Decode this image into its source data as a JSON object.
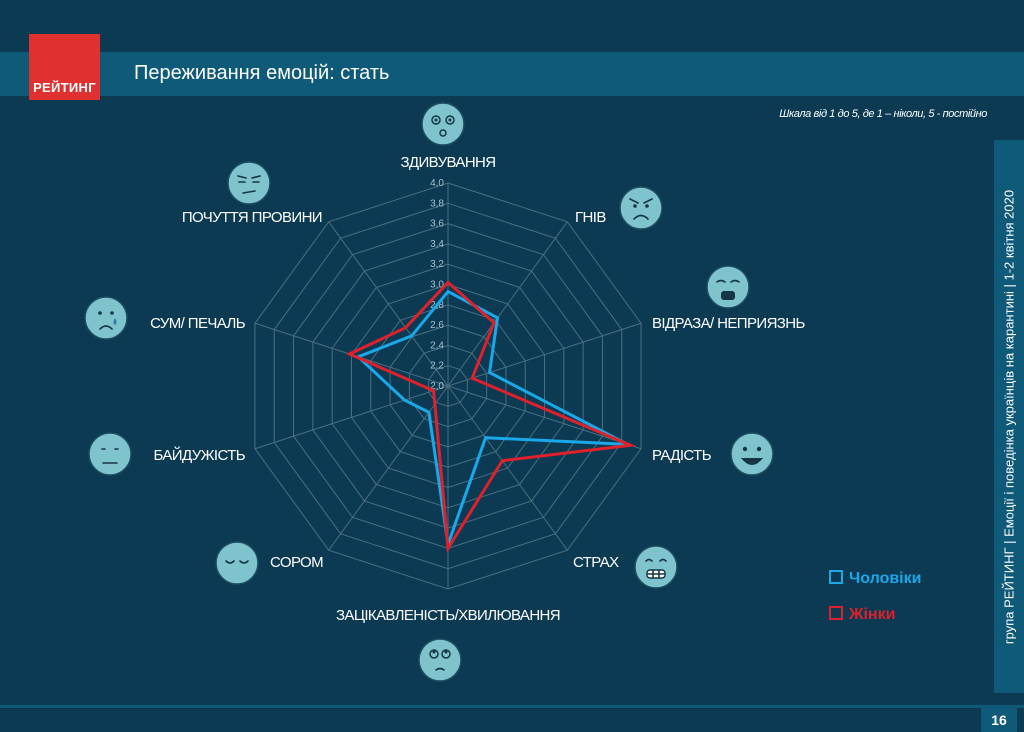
{
  "header": {
    "logo_text": "РЕЙТИНГ",
    "title": "Переживання емоцій: стать",
    "scale_note": "Шкала від 1 до 5, де 1 – ніколи, 5 - постійно"
  },
  "sidebar": {
    "text": "група РЕЙТИНГ | Емоції і поведінка українців на карантині | 1-2 квітня 2020"
  },
  "footer": {
    "page_number": "16"
  },
  "colors": {
    "background": "#0b3a52",
    "band": "#0e5a78",
    "brand_red": "#e0302f",
    "men": "#1aa8e8",
    "women": "#e0202a",
    "grid": "#4b6f80",
    "face": "#7fc3cc"
  },
  "chart_data": {
    "type": "radar",
    "categories": [
      "ЗДИВУВАННЯ",
      "ГНІВ",
      "ВІДРАЗА/ НЕПРИЯЗНЬ",
      "РАДІСТЬ",
      "СТРАХ",
      "ЗАЦІКАВЛЕНІСТЬ/ХВИЛЮВАННЯ",
      "СОРОМ",
      "БАЙДУЖІСТЬ",
      "СУМ/ ПЕЧАЛЬ",
      "ПОЧУТТЯ ПРОВИНИ"
    ],
    "category_icons": [
      "surprised-face-icon",
      "angry-face-icon",
      "disgusted-face-icon",
      "happy-face-icon",
      "scared-face-icon",
      "curious-face-icon",
      "ashamed-face-icon",
      "indifferent-face-icon",
      "sad-face-icon",
      "guilty-face-icon"
    ],
    "axis_ticks": [
      "2,0",
      "2,2",
      "2,4",
      "2,6",
      "2,8",
      "3,0",
      "3,2",
      "3,4",
      "3,6",
      "3,8",
      "4,0"
    ],
    "rlim": [
      2.0,
      4.0
    ],
    "grid": true,
    "legend_position": "bottom-right",
    "series": [
      {
        "name": "Чоловіки",
        "values": [
          2.93,
          2.83,
          2.43,
          3.86,
          2.63,
          3.56,
          2.32,
          2.45,
          2.93,
          2.61
        ]
      },
      {
        "name": "Жінки",
        "values": [
          3.02,
          2.77,
          2.25,
          3.89,
          2.91,
          3.6,
          2.22,
          2.15,
          3.02,
          2.71
        ]
      }
    ]
  },
  "legend": {
    "men_label": "Чоловіки",
    "women_label": "Жінки"
  }
}
